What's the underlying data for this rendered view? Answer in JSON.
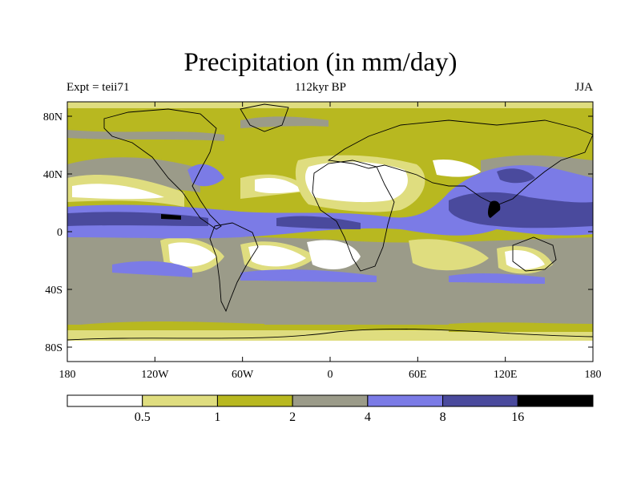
{
  "title": "Precipitation (in mm/day)",
  "subtitle_left": "Expt = teii71",
  "subtitle_center": "112kyr BP",
  "subtitle_right": "JJA",
  "map": {
    "x_ticks": [
      "180",
      "120W",
      "60W",
      "0",
      "60E",
      "120E",
      "180"
    ],
    "y_ticks": [
      "80N",
      "40N",
      "0",
      "40S",
      "80S"
    ],
    "lat_values": [
      80,
      40,
      0,
      -40,
      -80
    ]
  },
  "colorbar": {
    "colors": [
      "#ffffff",
      "#dfdd7f",
      "#b8b820",
      "#9b9b89",
      "#7b7be6",
      "#4a4a9d",
      "#000000"
    ],
    "labels": [
      "0.5",
      "1",
      "2",
      "4",
      "8",
      "16"
    ]
  }
}
